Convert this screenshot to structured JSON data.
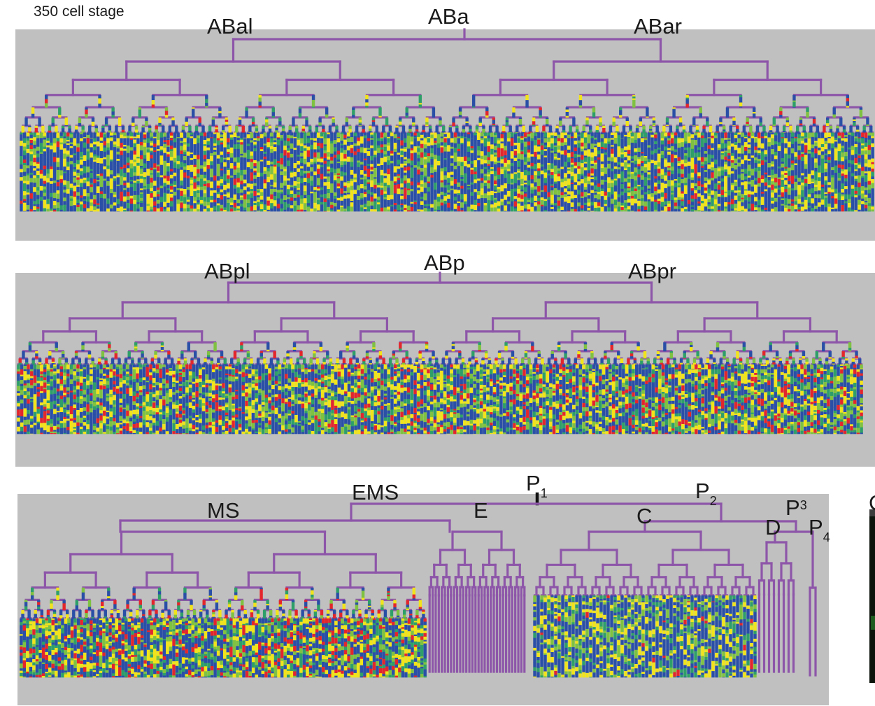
{
  "figure": {
    "stage_label": "350 cell stage",
    "panel_letter_partial": "C",
    "colors": {
      "panel_background": "#c0c0c0",
      "tree_lines": "#8e56a8",
      "expression_low": "#2a4fa6",
      "expression_mid_low": "#2f9f6a",
      "expression_mid": "#7fc241",
      "expression_high": "#f2e41b",
      "expression_max": "#e3262b",
      "p1_marker": "#111111"
    }
  },
  "tree_aba": {
    "root_label": "ABa",
    "left_label": "ABal",
    "right_label": "ABar"
  },
  "tree_abp": {
    "root_label": "ABp",
    "left_label": "ABpl",
    "right_label": "ABpr"
  },
  "tree_p1": {
    "labels": {
      "p1": "P",
      "p1_sub": "1",
      "ems": "EMS",
      "ms": "MS",
      "e": "E",
      "p2": "P",
      "p2_sub": "2",
      "c": "C",
      "d": "D",
      "p3": "P",
      "p3_sub": "3",
      "p4": "P",
      "p4_sub": "4"
    }
  }
}
